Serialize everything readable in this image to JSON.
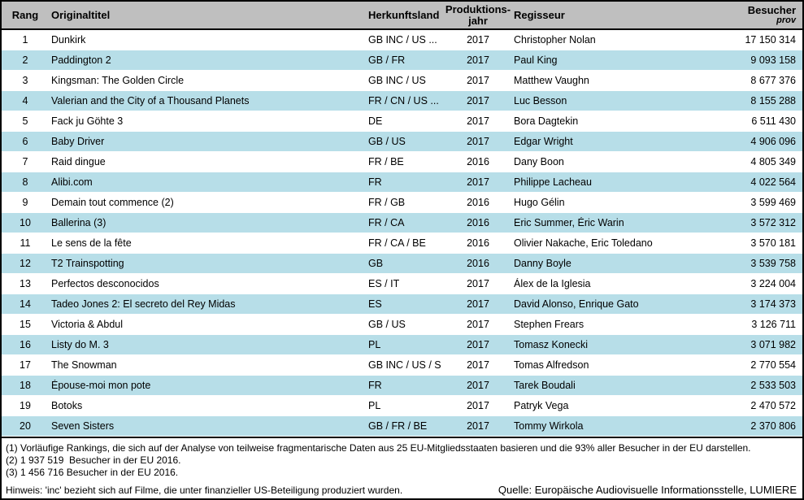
{
  "colors": {
    "header-bg": "#BFBFBF",
    "row-alt-bg": "#B7DEE8",
    "border-color": "#000000",
    "text-color": "#000000"
  },
  "table": {
    "columns": {
      "rank": "Rang",
      "title": "Originaltitel",
      "country": "Herkunftsland",
      "year_line1": "Produktions-",
      "year_line2": "jahr",
      "director": "Regisseur",
      "admissions": "Besucher",
      "admissions_note": "prov"
    },
    "rows": [
      {
        "rank": "1",
        "title": "Dunkirk",
        "country": "GB INC / US ...",
        "year": "2017",
        "director": "Christopher Nolan",
        "admissions": "17 150 314"
      },
      {
        "rank": "2",
        "title": "Paddington 2",
        "country": "GB / FR",
        "year": "2017",
        "director": "Paul King",
        "admissions": "9 093 158"
      },
      {
        "rank": "3",
        "title": "Kingsman: The Golden Circle",
        "country": "GB INC / US",
        "year": "2017",
        "director": "Matthew Vaughn",
        "admissions": "8 677 376"
      },
      {
        "rank": "4",
        "title": "Valerian and the City of a Thousand Planets",
        "country": "FR / CN / US ...",
        "year": "2017",
        "director": "Luc Besson",
        "admissions": "8 155 288"
      },
      {
        "rank": "5",
        "title": "Fack ju Göhte 3",
        "country": "DE",
        "year": "2017",
        "director": "Bora Dagtekin",
        "admissions": "6 511 430"
      },
      {
        "rank": "6",
        "title": "Baby Driver",
        "country": "GB / US",
        "year": "2017",
        "director": "Edgar Wright",
        "admissions": "4 906 096"
      },
      {
        "rank": "7",
        "title": "Raid dingue",
        "country": "FR / BE",
        "year": "2016",
        "director": "Dany Boon",
        "admissions": "4 805 349"
      },
      {
        "rank": "8",
        "title": "Alibi.com",
        "country": "FR",
        "year": "2017",
        "director": "Philippe Lacheau",
        "admissions": "4 022 564"
      },
      {
        "rank": "9",
        "title": "Demain tout commence (2)",
        "country": "FR / GB",
        "year": "2016",
        "director": "Hugo Gélin",
        "admissions": "3 599 469"
      },
      {
        "rank": "10",
        "title": "Ballerina (3)",
        "country": "FR / CA",
        "year": "2016",
        "director": "Eric Summer, Éric Warin",
        "admissions": "3 572 312"
      },
      {
        "rank": "11",
        "title": "Le sens de la fête",
        "country": "FR / CA / BE",
        "year": "2016",
        "director": "Olivier Nakache, Eric Toledano",
        "admissions": "3 570 181"
      },
      {
        "rank": "12",
        "title": "T2 Trainspotting",
        "country": "GB",
        "year": "2016",
        "director": "Danny Boyle",
        "admissions": "3 539 758"
      },
      {
        "rank": "13",
        "title": "Perfectos desconocidos",
        "country": "ES / IT",
        "year": "2017",
        "director": "Álex de la Iglesia",
        "admissions": "3 224 004"
      },
      {
        "rank": "14",
        "title": "Tadeo Jones 2: El secreto del Rey Midas",
        "country": "ES",
        "year": "2017",
        "director": "David Alonso, Enrique Gato",
        "admissions": "3 174 373"
      },
      {
        "rank": "15",
        "title": "Victoria & Abdul",
        "country": "GB / US",
        "year": "2017",
        "director": "Stephen Frears",
        "admissions": "3 126 711"
      },
      {
        "rank": "16",
        "title": "Listy do M. 3",
        "country": "PL",
        "year": "2017",
        "director": "Tomasz Konecki",
        "admissions": "3 071 982"
      },
      {
        "rank": "17",
        "title": "The Snowman",
        "country": "GB INC / US / S",
        "year": "2017",
        "director": "Tomas Alfredson",
        "admissions": "2 770 554"
      },
      {
        "rank": "18",
        "title": "Épouse-moi mon pote",
        "country": "FR",
        "year": "2017",
        "director": "Tarek Boudali",
        "admissions": "2 533 503"
      },
      {
        "rank": "19",
        "title": "Botoks",
        "country": "PL",
        "year": "2017",
        "director": "Patryk Vega",
        "admissions": "2 470 572"
      },
      {
        "rank": "20",
        "title": "Seven Sisters",
        "country": "GB / FR / BE",
        "year": "2017",
        "director": "Tommy Wirkola",
        "admissions": "2 370 806"
      }
    ]
  },
  "footnotes": [
    "(1) Vorläufige Rankings, die sich auf der Analyse von teilweise fragmentarische Daten aus 25 EU-Mitgliedsstaaten basieren und die 93% aller Besucher in der EU darstellen.",
    "(2) 1 937 519  Besucher in der EU 2016.",
    "(3) 1 456 716 Besucher in der EU 2016."
  ],
  "hint": "Hinweis: 'inc' bezieht sich auf Filme, die unter finanzieller US-Beteiligung produziert wurden.",
  "source": "Quelle: Europäische Audiovisuelle Informationsstelle, LUMIERE"
}
